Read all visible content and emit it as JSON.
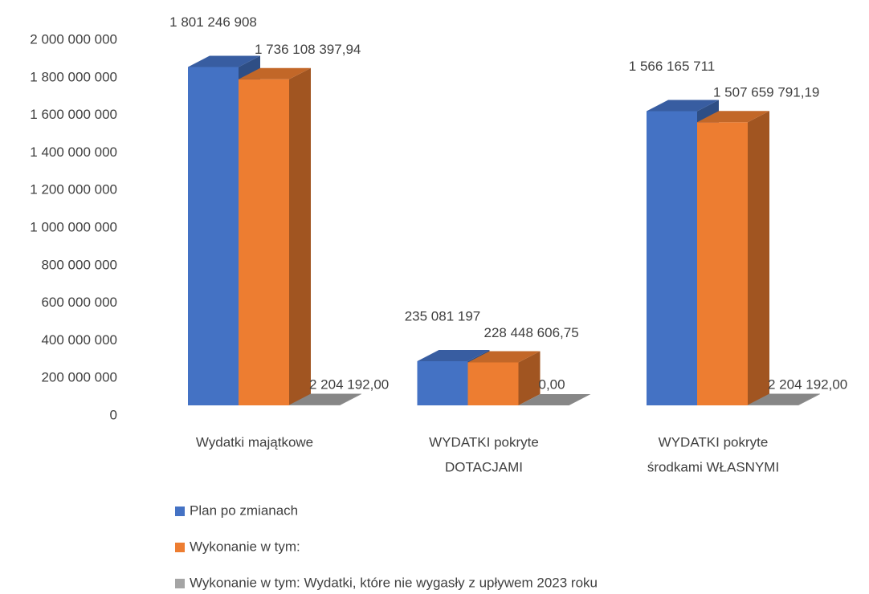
{
  "chart_data": {
    "type": "bar3d",
    "categories": [
      [
        "Wydatki majątkowe"
      ],
      [
        "WYDATKI pokryte",
        "DOTACJAMI"
      ],
      [
        "WYDATKI pokryte",
        "środkami WŁASNYMI"
      ]
    ],
    "series": [
      {
        "name": "Plan po zmianach",
        "color": "#4472c4",
        "values": [
          1801246908,
          235081197,
          1566165711
        ],
        "value_labels": [
          "1 801 246 908",
          "235 081 197",
          "1 566 165 711"
        ]
      },
      {
        "name": "Wykonanie w tym:",
        "color": "#ed7d31",
        "values": [
          1736108397.94,
          228448606.75,
          1507659791.19
        ],
        "value_labels": [
          "1 736 108 397,94",
          "228 448 606,75",
          "1 507 659 791,19"
        ]
      },
      {
        "name": "Wykonanie w tym: Wydatki, które nie wygasły z upływem 2023 roku",
        "color": "#a5a5a5",
        "values": [
          2204192.0,
          0,
          2204192.0
        ],
        "value_labels": [
          "2 204 192,00",
          "0,00",
          "2 204 192,00"
        ]
      }
    ],
    "ylim": [
      0,
      2000000000
    ],
    "yticks": [
      0,
      {
        "value": 200000000,
        "label": "200 000 000"
      },
      {
        "value": 400000000,
        "label": "400 000 000"
      },
      {
        "value": 600000000,
        "label": "600 000 000"
      },
      {
        "value": 800000000,
        "label": "800 000 000"
      },
      {
        "value": 1000000000,
        "label": "1 000 000 000"
      },
      {
        "value": 1200000000,
        "label": "1 200 000 000"
      },
      {
        "value": 1400000000,
        "label": "1 400 000 000"
      },
      {
        "value": 1600000000,
        "label": "1 600 000 000"
      },
      {
        "value": 1800000000,
        "label": "1 800 000 000"
      },
      {
        "value": 2000000000,
        "label": "2 000 000 000"
      }
    ],
    "grid": false,
    "legend": "bottom"
  }
}
